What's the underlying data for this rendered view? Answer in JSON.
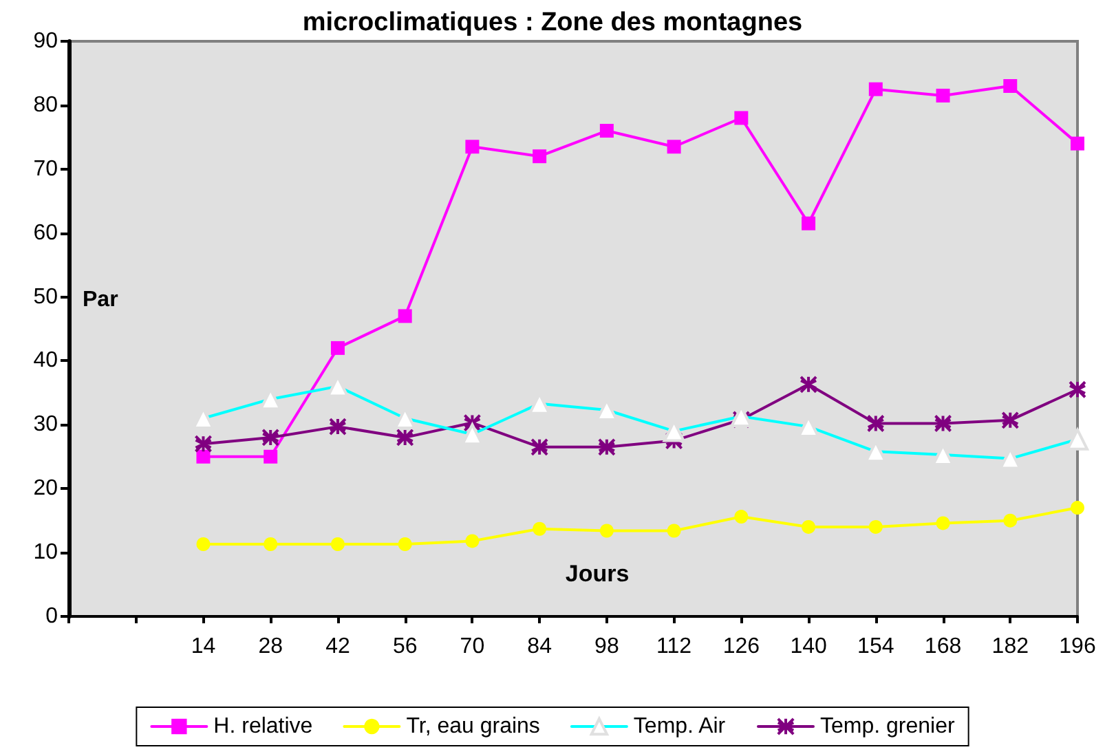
{
  "chart_data": {
    "type": "line",
    "title": "microclimatiques : Zone des montagnes",
    "xlabel": "Jours",
    "ylabel": "Par",
    "categories": [
      null,
      null,
      "14",
      "28",
      "42",
      "56",
      "70",
      "84",
      "98",
      "112",
      "126",
      "140",
      "154",
      "168",
      "182",
      "196"
    ],
    "ylim": [
      0,
      90
    ],
    "yticks": [
      0,
      10,
      20,
      30,
      40,
      50,
      60,
      70,
      80,
      90
    ],
    "grid": false,
    "legend": "bottom",
    "series": [
      {
        "name": "H. relative",
        "color": "#ff00ff",
        "marker": "square",
        "values": [
          null,
          null,
          25,
          25,
          42,
          47,
          73.5,
          72,
          76,
          73.5,
          78,
          61.5,
          82.5,
          81.5,
          83,
          74
        ]
      },
      {
        "name": "Tr, eau grains",
        "color": "#ffff00",
        "marker": "circle",
        "values": [
          null,
          null,
          11.3,
          11.3,
          11.3,
          11.3,
          11.8,
          13.7,
          13.4,
          13.4,
          15.6,
          14,
          14,
          14.6,
          15,
          17
        ]
      },
      {
        "name": "Temp. Air",
        "color": "#00ffff",
        "marker": "triangle",
        "values": [
          null,
          null,
          31,
          34,
          36,
          31,
          28.5,
          33.3,
          32.3,
          29,
          31.3,
          29.7,
          25.8,
          25.3,
          24.7,
          27.7
        ]
      },
      {
        "name": "Temp. grenier",
        "color": "#800080",
        "marker": "cross",
        "values": [
          null,
          null,
          27,
          28,
          29.7,
          28,
          30.3,
          26.5,
          26.5,
          27.5,
          30.8,
          36.3,
          30.2,
          30.2,
          30.7,
          35.5
        ]
      }
    ]
  }
}
